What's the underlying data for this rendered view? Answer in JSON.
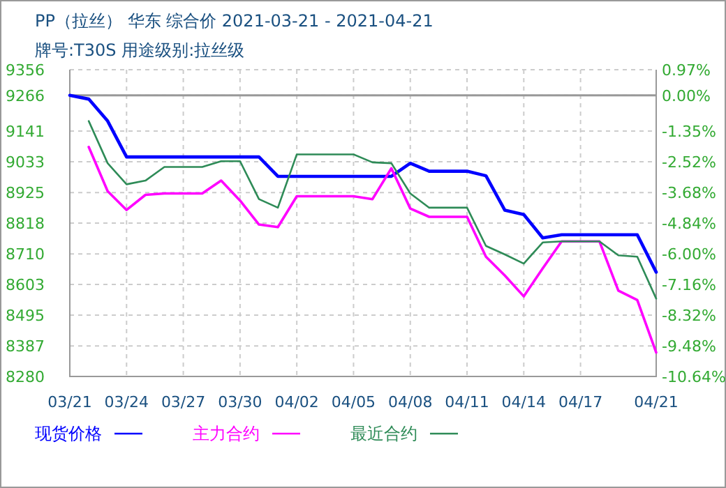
{
  "chart_data": {
    "type": "line",
    "title": "PP（拉丝） 华东 综合价 2021-03-21 - 2021-04-21",
    "subtitle": "牌号:T30S 用途级别:拉丝级",
    "x": [
      "2021-03-21",
      "2021-03-22",
      "2021-03-23",
      "2021-03-24",
      "2021-03-25",
      "2021-03-26",
      "2021-03-27",
      "2021-03-28",
      "2021-03-29",
      "2021-03-30",
      "2021-03-31",
      "2021-04-01",
      "2021-04-02",
      "2021-04-03",
      "2021-04-04",
      "2021-04-05",
      "2021-04-06",
      "2021-04-07",
      "2021-04-08",
      "2021-04-09",
      "2021-04-10",
      "2021-04-11",
      "2021-04-12",
      "2021-04-13",
      "2021-04-14",
      "2021-04-15",
      "2021-04-16",
      "2021-04-17",
      "2021-04-18",
      "2021-04-19",
      "2021-04-20",
      "2021-04-21"
    ],
    "series": [
      {
        "name": "现货价格",
        "color": "#0000ff",
        "values": [
          9266,
          9253,
          9176,
          9050,
          9050,
          9050,
          9050,
          9050,
          9050,
          9050,
          9050,
          8982,
          8982,
          8982,
          8982,
          8982,
          8982,
          8982,
          9028,
          9000,
          9000,
          9000,
          8984,
          8863,
          8848,
          8766,
          8777,
          8777,
          8777,
          8777,
          8777,
          8646
        ]
      },
      {
        "name": "主力合约",
        "color": "#ff00ff",
        "values": [
          null,
          9085,
          8930,
          8864,
          8917,
          8922,
          8922,
          8922,
          8967,
          8897,
          8813,
          8804,
          8912,
          8912,
          8912,
          8912,
          8902,
          9010,
          8869,
          8840,
          8840,
          8840,
          8700,
          8634,
          8561,
          8659,
          8754,
          8754,
          8754,
          8581,
          8548,
          8364
        ]
      },
      {
        "name": "最近合约",
        "color": "#2e8b57",
        "values": [
          null,
          9176,
          9028,
          8954,
          8967,
          9015,
          9015,
          9015,
          9035,
          9035,
          8902,
          8872,
          9059,
          9059,
          9059,
          9059,
          9031,
          9028,
          8922,
          8872,
          8872,
          8872,
          8738,
          8708,
          8676,
          8750,
          8754,
          8754,
          8754,
          8705,
          8700,
          8553
        ]
      }
    ],
    "xlim": [
      "2021-03-21",
      "2021-04-21"
    ],
    "xticks": [
      {
        "value": "2021-03-21",
        "label": "03/21"
      },
      {
        "value": "2021-03-24",
        "label": "03/24"
      },
      {
        "value": "2021-03-27",
        "label": "03/27"
      },
      {
        "value": "2021-03-30",
        "label": "03/30"
      },
      {
        "value": "2021-04-02",
        "label": "04/02"
      },
      {
        "value": "2021-04-05",
        "label": "04/05"
      },
      {
        "value": "2021-04-08",
        "label": "04/08"
      },
      {
        "value": "2021-04-11",
        "label": "04/11"
      },
      {
        "value": "2021-04-14",
        "label": "04/14"
      },
      {
        "value": "2021-04-17",
        "label": "04/17"
      },
      {
        "value": "2021-04-21",
        "label": "04/21"
      }
    ],
    "ylim": [
      8280,
      9356
    ],
    "yticks": [
      8280,
      8387,
      8495,
      8603,
      8710,
      8818,
      8925,
      9033,
      9141,
      9266,
      9356
    ],
    "y2lim": [
      -10.64,
      0.97
    ],
    "y2ticks": [
      {
        "value": -10.64,
        "label": "-10.64%"
      },
      {
        "value": -9.48,
        "label": "-9.48%"
      },
      {
        "value": -8.32,
        "label": "-8.32%"
      },
      {
        "value": -7.16,
        "label": "-7.16%"
      },
      {
        "value": -6.0,
        "label": "-6.00%"
      },
      {
        "value": -4.84,
        "label": "-4.84%"
      },
      {
        "value": -3.68,
        "label": "-3.68%"
      },
      {
        "value": -2.52,
        "label": "-2.52%"
      },
      {
        "value": -1.35,
        "label": "-1.35%"
      },
      {
        "value": 0,
        "label": "0.00%"
      },
      {
        "value": 0.97,
        "label": "0.97%"
      }
    ],
    "ref_lines": [
      {
        "axis": "y",
        "value": 9266,
        "color": "#999999"
      }
    ],
    "grid": true,
    "legend": "bottom",
    "line_style": "solid",
    "marker": "none"
  }
}
